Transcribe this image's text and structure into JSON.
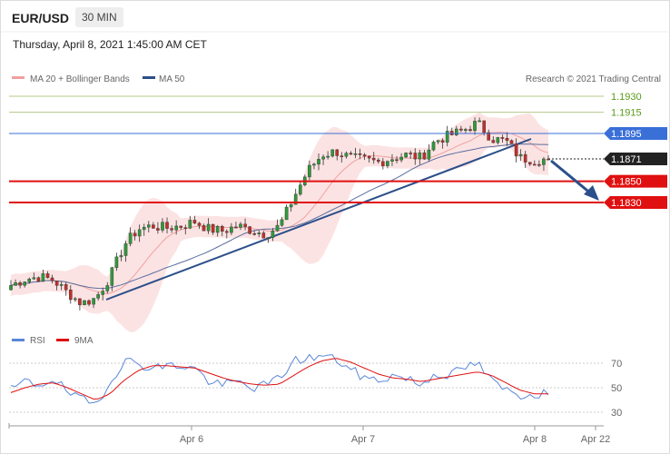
{
  "header": {
    "symbol": "EUR/USD",
    "timeframe": "30 MIN",
    "datetime": "Thursday, April 8, 2021 1:45:00 AM CET",
    "copyright": "Research © 2021 Trading Central"
  },
  "chart_data": {
    "type": "candlestick",
    "ylim": [
      1.17,
      1.196
    ],
    "legend": [
      {
        "name": "MA 20 + Bollinger Bands",
        "color": "#f0a0a0"
      },
      {
        "name": "MA 50",
        "color": "#2c4f8a"
      }
    ],
    "levels": [
      {
        "label": "1.1930",
        "value": 1.193,
        "color": "#b5c98a",
        "text_color": "#5a9a1a",
        "badge": false
      },
      {
        "label": "1.1915",
        "value": 1.1915,
        "color": "#b5c98a",
        "text_color": "#5a9a1a",
        "badge": false
      },
      {
        "label": "1.1895",
        "value": 1.1895,
        "color": "#3a6fd8",
        "text_color": "#ffffff",
        "badge": true
      },
      {
        "label": "1.1871",
        "value": 1.1871,
        "color": "#222222",
        "text_color": "#ffffff",
        "badge": true,
        "dotted": true
      },
      {
        "label": "1.1850",
        "value": 1.185,
        "color": "#e01010",
        "text_color": "#ffffff",
        "badge": true,
        "thick": true
      },
      {
        "label": "1.1830",
        "value": 1.183,
        "color": "#e01010",
        "text_color": "#ffffff",
        "badge": true,
        "thick": true
      }
    ],
    "x_labels": [
      "Apr 6",
      "Apr 7",
      "Apr 8",
      "Apr 22"
    ],
    "close_path": [
      1.1752,
      1.1758,
      1.176,
      1.1757,
      1.1745,
      1.1735,
      1.174,
      1.176,
      1.179,
      1.1805,
      1.1808,
      1.1806,
      1.1808,
      1.1812,
      1.1805,
      1.1803,
      1.1808,
      1.1804,
      1.18,
      1.1808,
      1.1835,
      1.186,
      1.1875,
      1.1878,
      1.1872,
      1.187,
      1.1868,
      1.1872,
      1.1875,
      1.1872,
      1.1888,
      1.1893,
      1.1898,
      1.1905,
      1.189,
      1.1888,
      1.1872,
      1.187,
      1.1871
    ],
    "rsi": {
      "legend": [
        {
          "name": "RSI",
          "color": "#5a86d8"
        },
        {
          "name": "9MA",
          "color": "#e01010"
        }
      ],
      "levels": [
        {
          "label": "70",
          "value": 70
        },
        {
          "label": "50",
          "value": 50
        },
        {
          "label": "30",
          "value": 30
        }
      ],
      "ylim": [
        20,
        85
      ],
      "rsi_path": [
        48,
        55,
        52,
        58,
        46,
        40,
        36,
        55,
        72,
        70,
        66,
        68,
        68,
        66,
        55,
        52,
        55,
        50,
        52,
        58,
        72,
        74,
        76,
        73,
        65,
        58,
        56,
        60,
        58,
        52,
        62,
        60,
        66,
        70,
        55,
        48,
        44,
        45,
        46
      ],
      "ma_path": [
        46,
        50,
        53,
        54,
        50,
        45,
        40,
        45,
        56,
        64,
        68,
        68,
        67,
        66,
        62,
        58,
        55,
        53,
        52,
        53,
        60,
        67,
        72,
        74,
        71,
        66,
        61,
        58,
        57,
        55,
        57,
        59,
        61,
        63,
        60,
        54,
        48,
        45,
        45
      ]
    }
  }
}
